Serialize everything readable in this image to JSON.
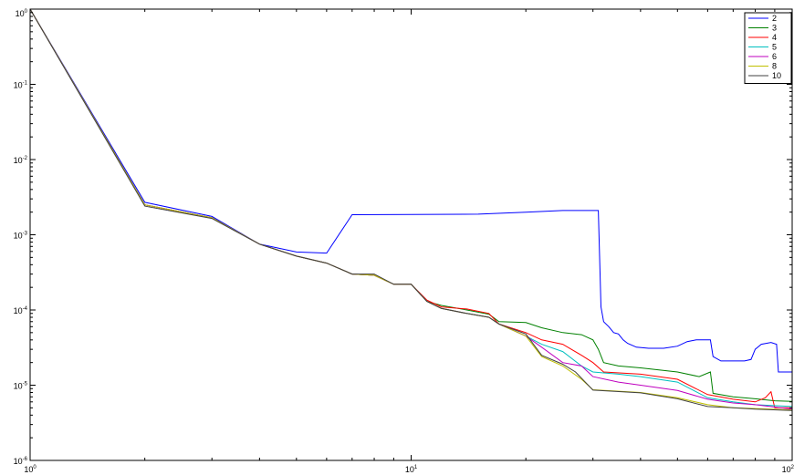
{
  "chart_data": {
    "type": "line",
    "title": "",
    "xlabel": "",
    "ylabel": "",
    "xscale": "log",
    "yscale": "log",
    "xlim": [
      1,
      100
    ],
    "ylim": [
      1e-06,
      1
    ],
    "grid": false,
    "legend_position": "top-right",
    "x_ticks": [
      {
        "base": "10",
        "exp": "0",
        "value": 1
      },
      {
        "base": "10",
        "exp": "1",
        "value": 10
      },
      {
        "base": "10",
        "exp": "2",
        "value": 100
      }
    ],
    "y_ticks": [
      {
        "base": "10",
        "exp": "0",
        "value": 1
      },
      {
        "base": "10",
        "exp": "-1",
        "value": 0.1
      },
      {
        "base": "10",
        "exp": "-2",
        "value": 0.01
      },
      {
        "base": "10",
        "exp": "-3",
        "value": 0.001
      },
      {
        "base": "10",
        "exp": "-4",
        "value": 0.0001
      },
      {
        "base": "10",
        "exp": "-5",
        "value": 1e-05
      },
      {
        "base": "10",
        "exp": "-6",
        "value": 1e-06
      }
    ],
    "series": [
      {
        "name": "2",
        "color": "#0000ff",
        "points": [
          [
            1,
            1
          ],
          [
            2,
            0.0027
          ],
          [
            3,
            0.00175
          ],
          [
            4,
            0.00075
          ],
          [
            5,
            0.00059
          ],
          [
            6,
            0.00057
          ],
          [
            7,
            0.00185
          ],
          [
            10,
            0.00186
          ],
          [
            15,
            0.00188
          ],
          [
            20,
            0.002
          ],
          [
            25,
            0.0021
          ],
          [
            31,
            0.0021
          ],
          [
            31.5,
            0.00011
          ],
          [
            32,
            7e-05
          ],
          [
            33,
            6e-05
          ],
          [
            34,
            5e-05
          ],
          [
            35,
            4.8e-05
          ],
          [
            36,
            4e-05
          ],
          [
            37,
            3.6e-05
          ],
          [
            39,
            3.2e-05
          ],
          [
            42,
            3.1e-05
          ],
          [
            46,
            3.1e-05
          ],
          [
            50,
            3.3e-05
          ],
          [
            53,
            3.8e-05
          ],
          [
            56,
            4e-05
          ],
          [
            61,
            4e-05
          ],
          [
            62,
            2.4e-05
          ],
          [
            65,
            2.1e-05
          ],
          [
            75,
            2.1e-05
          ],
          [
            78,
            2.2e-05
          ],
          [
            80,
            3e-05
          ],
          [
            83,
            3.5e-05
          ],
          [
            88,
            3.7e-05
          ],
          [
            91,
            3.5e-05
          ],
          [
            92,
            1.5e-05
          ],
          [
            100,
            1.5e-05
          ]
        ]
      },
      {
        "name": "3",
        "color": "#008000",
        "points": [
          [
            1,
            1
          ],
          [
            2,
            0.0025
          ],
          [
            3,
            0.00168
          ],
          [
            4,
            0.00075
          ],
          [
            5,
            0.00052
          ],
          [
            6,
            0.00042
          ],
          [
            7,
            0.0003
          ],
          [
            8,
            0.00029
          ],
          [
            9,
            0.00022
          ],
          [
            10,
            0.00022
          ],
          [
            11,
            0.00013
          ],
          [
            12,
            0.000115
          ],
          [
            14,
            0.0001
          ],
          [
            16,
            8.8e-05
          ],
          [
            17,
            7e-05
          ],
          [
            20,
            6.8e-05
          ],
          [
            22,
            5.8e-05
          ],
          [
            25,
            5e-05
          ],
          [
            28,
            4.7e-05
          ],
          [
            30,
            4e-05
          ],
          [
            31,
            3e-05
          ],
          [
            32,
            2e-05
          ],
          [
            35,
            1.8e-05
          ],
          [
            40,
            1.7e-05
          ],
          [
            50,
            1.5e-05
          ],
          [
            57,
            1.3e-05
          ],
          [
            61,
            1.5e-05
          ],
          [
            62,
            7.8e-06
          ],
          [
            70,
            7e-06
          ],
          [
            80,
            6.6e-06
          ],
          [
            90,
            6.2e-06
          ],
          [
            100,
            6.1e-06
          ]
        ]
      },
      {
        "name": "4",
        "color": "#ff0000",
        "points": [
          [
            1,
            1
          ],
          [
            2,
            0.0025
          ],
          [
            3,
            0.00168
          ],
          [
            4,
            0.00075
          ],
          [
            5,
            0.00052
          ],
          [
            6,
            0.00042
          ],
          [
            7,
            0.0003
          ],
          [
            8,
            0.00029
          ],
          [
            9,
            0.00022
          ],
          [
            10,
            0.00022
          ],
          [
            11,
            0.000135
          ],
          [
            12,
            0.00011
          ],
          [
            14,
            0.000103
          ],
          [
            16,
            9e-05
          ],
          [
            17,
            6.5e-05
          ],
          [
            20,
            5e-05
          ],
          [
            22,
            4e-05
          ],
          [
            25,
            3.5e-05
          ],
          [
            28,
            2.5e-05
          ],
          [
            30,
            2e-05
          ],
          [
            32,
            1.5e-05
          ],
          [
            40,
            1.4e-05
          ],
          [
            50,
            1.2e-05
          ],
          [
            60,
            7.5e-06
          ],
          [
            70,
            6.5e-06
          ],
          [
            80,
            6e-06
          ],
          [
            85,
            6.8e-06
          ],
          [
            88,
            8.2e-06
          ],
          [
            90,
            5e-06
          ],
          [
            100,
            5e-06
          ]
        ]
      },
      {
        "name": "5",
        "color": "#00bfbf",
        "points": [
          [
            1,
            1
          ],
          [
            2,
            0.0025
          ],
          [
            3,
            0.00168
          ],
          [
            4,
            0.00075
          ],
          [
            5,
            0.00052
          ],
          [
            6,
            0.00042
          ],
          [
            7,
            0.0003
          ],
          [
            8,
            0.00029
          ],
          [
            9,
            0.00022
          ],
          [
            10,
            0.00022
          ],
          [
            11,
            0.00013
          ],
          [
            12,
            0.000105
          ],
          [
            14,
            9e-05
          ],
          [
            16,
            8e-05
          ],
          [
            17,
            6.5e-05
          ],
          [
            20,
            4.5e-05
          ],
          [
            22,
            3.5e-05
          ],
          [
            25,
            2.8e-05
          ],
          [
            28,
            1.8e-05
          ],
          [
            30,
            1.5e-05
          ],
          [
            35,
            1.4e-05
          ],
          [
            40,
            1.3e-05
          ],
          [
            50,
            1.1e-05
          ],
          [
            60,
            6.8e-06
          ],
          [
            70,
            6e-06
          ],
          [
            80,
            5.5e-06
          ],
          [
            100,
            5.2e-06
          ]
        ]
      },
      {
        "name": "6",
        "color": "#bf00bf",
        "points": [
          [
            1,
            1
          ],
          [
            2,
            0.0025
          ],
          [
            3,
            0.00168
          ],
          [
            4,
            0.00075
          ],
          [
            5,
            0.00052
          ],
          [
            6,
            0.00042
          ],
          [
            7,
            0.0003
          ],
          [
            8,
            0.00029
          ],
          [
            9,
            0.00022
          ],
          [
            10,
            0.00022
          ],
          [
            11,
            0.00013
          ],
          [
            12,
            0.000105
          ],
          [
            14,
            9e-05
          ],
          [
            16,
            8e-05
          ],
          [
            17,
            6.5e-05
          ],
          [
            20,
            4.5e-05
          ],
          [
            22,
            3.2e-05
          ],
          [
            25,
            2e-05
          ],
          [
            28,
            1.8e-05
          ],
          [
            30,
            1.3e-05
          ],
          [
            35,
            1.1e-05
          ],
          [
            40,
            1e-05
          ],
          [
            50,
            8.5e-06
          ],
          [
            60,
            6.5e-06
          ],
          [
            70,
            5.8e-06
          ],
          [
            80,
            5.5e-06
          ],
          [
            100,
            4.8e-06
          ]
        ]
      },
      {
        "name": "8",
        "color": "#bfbf00",
        "points": [
          [
            1,
            1
          ],
          [
            2,
            0.0025
          ],
          [
            3,
            0.00168
          ],
          [
            4,
            0.00075
          ],
          [
            5,
            0.00052
          ],
          [
            6,
            0.00042
          ],
          [
            7,
            0.0003
          ],
          [
            8,
            0.00029
          ],
          [
            9,
            0.00022
          ],
          [
            10,
            0.00022
          ],
          [
            11,
            0.00013
          ],
          [
            12,
            0.000105
          ],
          [
            14,
            9e-05
          ],
          [
            16,
            8e-05
          ],
          [
            17,
            6.5e-05
          ],
          [
            20,
            4.5e-05
          ],
          [
            22,
            2.4e-05
          ],
          [
            25,
            1.8e-05
          ],
          [
            28,
            1.2e-05
          ],
          [
            30,
            8.7e-06
          ],
          [
            40,
            8e-06
          ],
          [
            50,
            6.8e-06
          ],
          [
            60,
            5.5e-06
          ],
          [
            70,
            5e-06
          ],
          [
            80,
            4.9e-06
          ],
          [
            100,
            4.7e-06
          ]
        ]
      },
      {
        "name": "10",
        "color": "#404040",
        "points": [
          [
            1,
            1
          ],
          [
            2,
            0.0024
          ],
          [
            3,
            0.00165
          ],
          [
            4,
            0.00075
          ],
          [
            5,
            0.00052
          ],
          [
            6,
            0.00042
          ],
          [
            7,
            0.0003
          ],
          [
            8,
            0.0003
          ],
          [
            9,
            0.00022
          ],
          [
            10,
            0.00022
          ],
          [
            11,
            0.00013
          ],
          [
            12,
            0.000105
          ],
          [
            14,
            9e-05
          ],
          [
            16,
            8e-05
          ],
          [
            17,
            6.5e-05
          ],
          [
            20,
            4.8e-05
          ],
          [
            22,
            2.5e-05
          ],
          [
            25,
            1.9e-05
          ],
          [
            27,
            1.5e-05
          ],
          [
            30,
            8.6e-06
          ],
          [
            40,
            7.9e-06
          ],
          [
            50,
            6.6e-06
          ],
          [
            60,
            5.2e-06
          ],
          [
            70,
            5e-06
          ],
          [
            80,
            4.8e-06
          ],
          [
            100,
            4.6e-06
          ]
        ]
      }
    ]
  }
}
